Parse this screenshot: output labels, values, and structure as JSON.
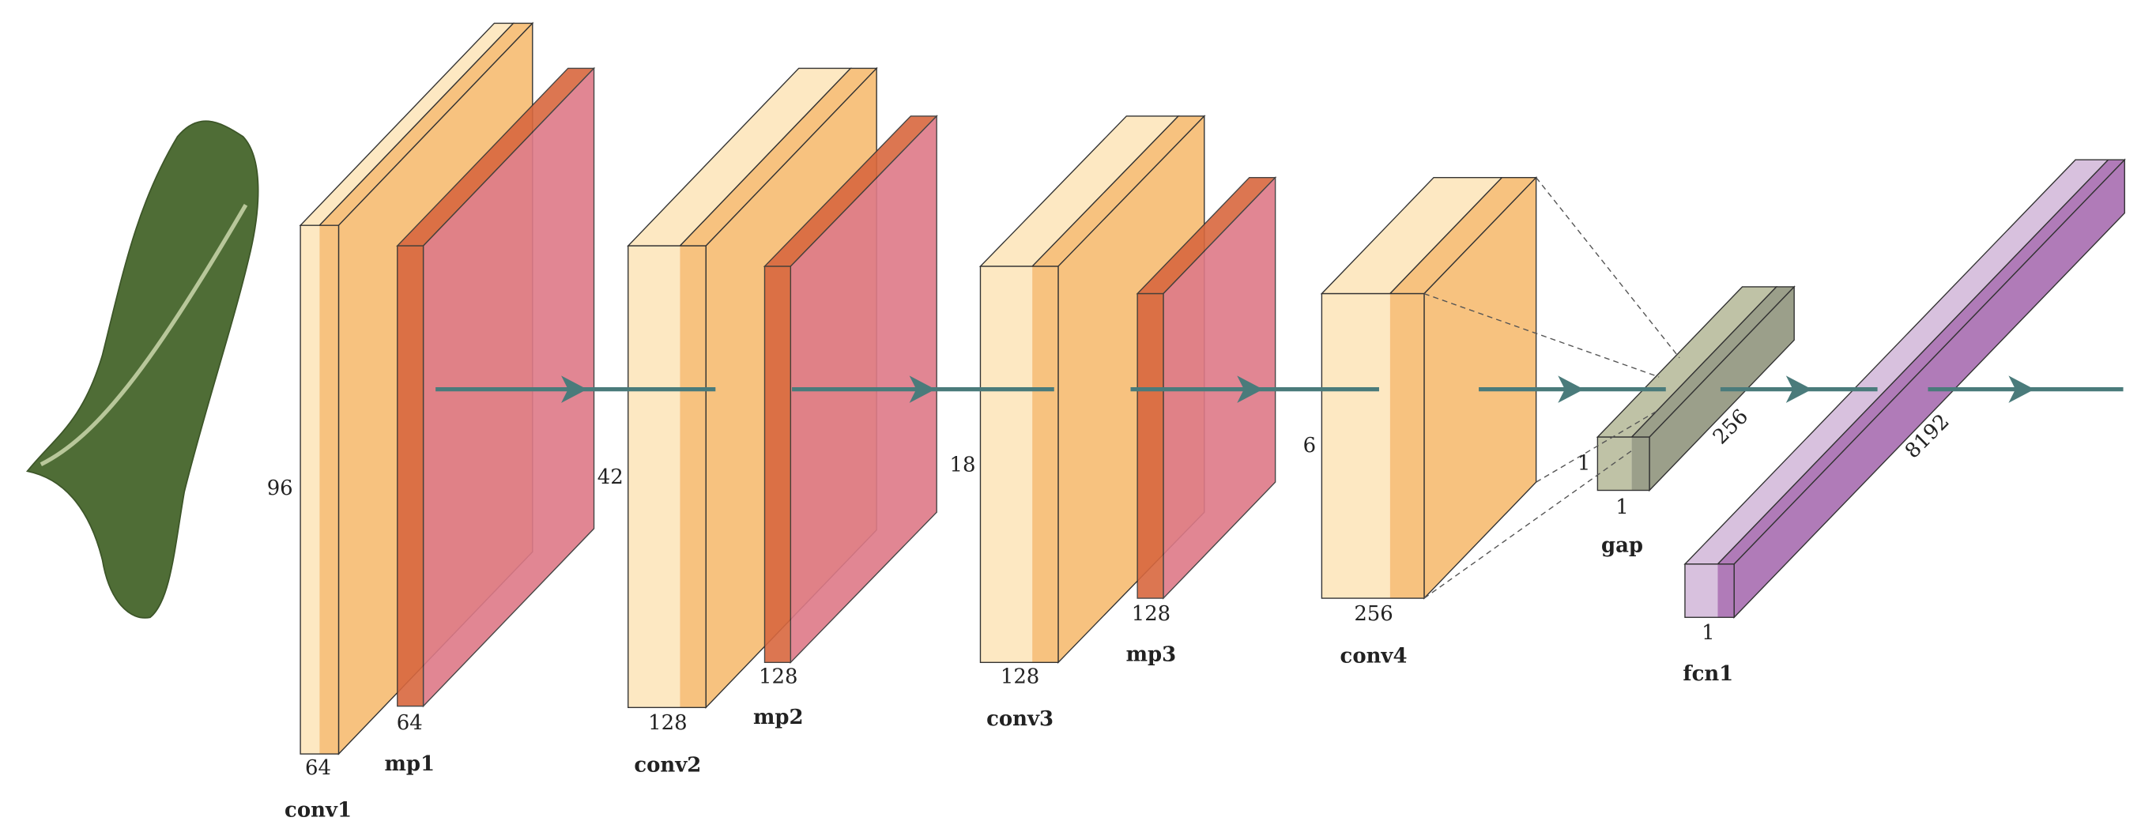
{
  "layers": [
    {
      "name": "conv1",
      "height": "96",
      "width": "64"
    },
    {
      "name": "mp1",
      "width": "64"
    },
    {
      "name": "conv2",
      "height": "42",
      "width": "128"
    },
    {
      "name": "mp2",
      "width": "128"
    },
    {
      "name": "conv3",
      "height": "18",
      "width": "128"
    },
    {
      "name": "mp3",
      "width": "128"
    },
    {
      "name": "conv4",
      "height": "6",
      "width": "256"
    },
    {
      "name": "gap",
      "height": "1",
      "width": "1",
      "depth": "256"
    },
    {
      "name": "fcn1",
      "width": "1",
      "depth": "8192"
    }
  ]
}
